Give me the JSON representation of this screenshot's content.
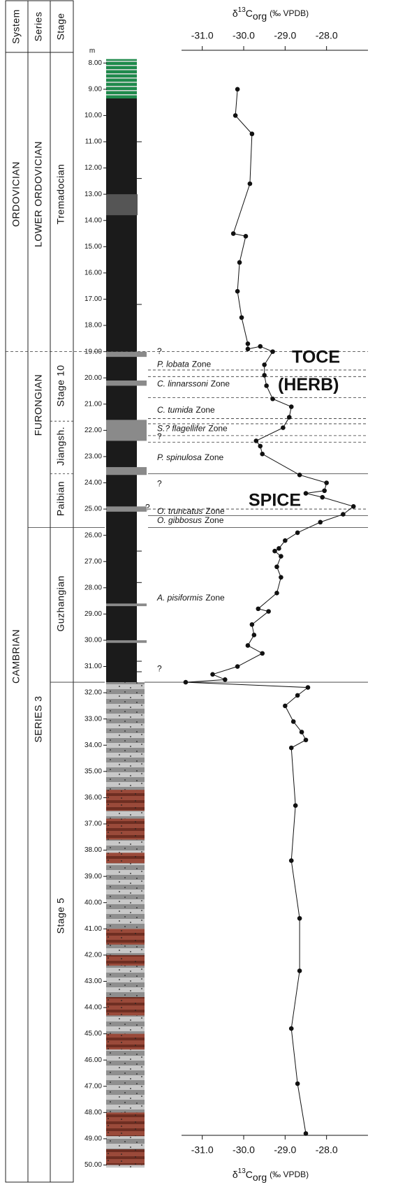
{
  "chart_data": {
    "type": "line",
    "headers": {
      "system": "System",
      "series": "Series",
      "stage": "Stage"
    },
    "depth_unit": "m",
    "systems": [
      "ORDOVICIAN",
      "CAMBRIAN"
    ],
    "series_units": [
      "LOWER ORDOVICIAN",
      "FURONGIAN",
      "SERIES 3"
    ],
    "stages": [
      "Tremadocian",
      "Stage 10",
      "Jiangsh.",
      "Paibian",
      "Guzhangian",
      "Stage 5"
    ],
    "zones": [
      {
        "taxon": "P. lobata",
        "rank": "Zone"
      },
      {
        "taxon": "C. linnarssoni",
        "rank": "Zone"
      },
      {
        "taxon": "C. tumida",
        "rank": "Zone"
      },
      {
        "taxon": "S.? flagellifer",
        "rank": "Zone"
      },
      {
        "taxon": "P. spinulosa",
        "rank": "Zone"
      },
      {
        "taxon": "O. truncatus",
        "rank": "Zone"
      },
      {
        "taxon": "O. gibbosus",
        "rank": "Zone"
      },
      {
        "taxon": "A. pisiformis",
        "rank": "Zone"
      }
    ],
    "queries": [
      "?",
      "?",
      "?",
      "?",
      "?"
    ],
    "events": [
      "TOCE",
      "(HERB)",
      "SPICE"
    ],
    "x_label": {
      "symbol": "δ",
      "superscript": "13",
      "base": "C",
      "subscript": "org",
      "unit": "(‰ VPDB)"
    },
    "xlim": [
      -31.5,
      -27.0
    ],
    "xticks": [
      {
        "value": -31,
        "label": "-31.0"
      },
      {
        "value": -30,
        "label": "-30.0"
      },
      {
        "value": -29,
        "label": "-29.0"
      },
      {
        "value": -28,
        "label": "-28.0"
      }
    ],
    "ylim": [
      7.7,
      50.2
    ],
    "y_reversed": true,
    "yticks": [
      {
        "value": 8,
        "label": "8.00"
      },
      {
        "value": 9,
        "label": "9.00"
      },
      {
        "value": 10,
        "label": "10.00"
      },
      {
        "value": 11,
        "label": "11.00"
      },
      {
        "value": 12,
        "label": "12.00"
      },
      {
        "value": 13,
        "label": "13.00"
      },
      {
        "value": 14,
        "label": "14.00"
      },
      {
        "value": 15,
        "label": "15.00"
      },
      {
        "value": 16,
        "label": "16.00"
      },
      {
        "value": 17,
        "label": "17.00"
      },
      {
        "value": 18,
        "label": "18.00"
      },
      {
        "value": 19,
        "label": "19.00"
      },
      {
        "value": 20,
        "label": "20.00"
      },
      {
        "value": 21,
        "label": "21.00"
      },
      {
        "value": 22,
        "label": "22.00"
      },
      {
        "value": 23,
        "label": "23.00"
      },
      {
        "value": 24,
        "label": "24.00"
      },
      {
        "value": 25,
        "label": "25.00"
      },
      {
        "value": 26,
        "label": "26.00"
      },
      {
        "value": 27,
        "label": "27.00"
      },
      {
        "value": 28,
        "label": "28.00"
      },
      {
        "value": 29,
        "label": "29.00"
      },
      {
        "value": 30,
        "label": "30.00"
      },
      {
        "value": 31,
        "label": "31.00"
      },
      {
        "value": 32,
        "label": "32.00"
      },
      {
        "value": 33,
        "label": "33.00"
      },
      {
        "value": 34,
        "label": "34.00"
      },
      {
        "value": 35,
        "label": "35.00"
      },
      {
        "value": 36,
        "label": "36.00"
      },
      {
        "value": 37,
        "label": "37.00"
      },
      {
        "value": 38,
        "label": "38.00"
      },
      {
        "value": 39,
        "label": "39.00"
      },
      {
        "value": 40,
        "label": "40.00"
      },
      {
        "value": 41,
        "label": "41.00"
      },
      {
        "value": 42,
        "label": "42.00"
      },
      {
        "value": 43,
        "label": "43.00"
      },
      {
        "value": 44,
        "label": "44.00"
      },
      {
        "value": 45,
        "label": "45.00"
      },
      {
        "value": 46,
        "label": "46.00"
      },
      {
        "value": 47,
        "label": "47.00"
      },
      {
        "value": 48,
        "label": "48.00"
      },
      {
        "value": 49,
        "label": "49.00"
      },
      {
        "value": 50,
        "label": "50.00"
      }
    ],
    "depth": [
      9.0,
      10.0,
      10.7,
      12.6,
      14.5,
      14.6,
      15.6,
      16.7,
      17.7,
      18.7,
      18.9,
      18.8,
      19.0,
      19.5,
      19.9,
      20.3,
      20.8,
      21.1,
      21.5,
      21.9,
      22.4,
      22.6,
      22.9,
      23.7,
      24.0,
      24.3,
      24.4,
      24.55,
      24.9,
      25.2,
      25.5,
      25.9,
      26.2,
      26.5,
      26.6,
      26.8,
      27.2,
      27.6,
      28.2,
      28.8,
      28.9,
      29.4,
      29.8,
      30.2,
      30.5,
      31.0,
      31.3,
      31.5,
      31.6,
      31.8,
      32.1,
      32.5,
      33.1,
      33.5,
      33.8,
      34.1,
      36.3,
      38.4,
      40.6,
      42.6,
      44.8,
      46.9,
      48.8
    ],
    "series": [
      {
        "color": "#111111",
        "values": [
          -30.15,
          -30.2,
          -29.8,
          -29.85,
          -30.25,
          -29.95,
          -30.1,
          -30.15,
          -30.05,
          -29.9,
          -29.9,
          -29.6,
          -29.3,
          -29.5,
          -29.5,
          -29.45,
          -29.3,
          -28.85,
          -28.9,
          -29.05,
          -29.7,
          -29.6,
          -29.55,
          -28.65,
          -28.0,
          -28.05,
          -28.5,
          -28.1,
          -27.35,
          -27.6,
          -28.15,
          -28.7,
          -29.0,
          -29.15,
          -29.25,
          -29.1,
          -29.2,
          -29.1,
          -29.2,
          -29.65,
          -29.4,
          -29.8,
          -29.75,
          -29.9,
          -29.55,
          -30.15,
          -30.75,
          -30.45,
          -31.4,
          -28.45,
          -28.7,
          -29.0,
          -28.8,
          -28.6,
          -28.5,
          -28.85,
          -28.75,
          -28.85,
          -28.65,
          -28.65,
          -28.85,
          -28.7,
          -28.5
        ]
      }
    ]
  }
}
